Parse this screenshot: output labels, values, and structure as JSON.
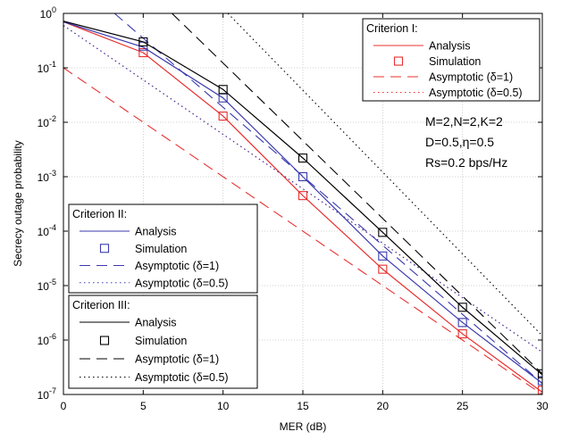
{
  "chart_data": {
    "type": "line",
    "xlabel": "MER (dB)",
    "ylabel": "Secrecy outage probability",
    "xlim": [
      0,
      30
    ],
    "ylim": [
      1e-07,
      1
    ],
    "yscale": "log",
    "grid": true,
    "x_ticks": [
      "0",
      "5",
      "10",
      "15",
      "20",
      "25",
      "30"
    ],
    "y_ticks": [
      {
        "base": "10",
        "exp": "0"
      },
      {
        "base": "10",
        "exp": "-1"
      },
      {
        "base": "10",
        "exp": "-2"
      },
      {
        "base": "10",
        "exp": "-3"
      },
      {
        "base": "10",
        "exp": "-4"
      },
      {
        "base": "10",
        "exp": "-5"
      },
      {
        "base": "10",
        "exp": "-6"
      },
      {
        "base": "10",
        "exp": "-7"
      }
    ],
    "annotation": [
      "M=2,N=2,K=2",
      "D=0.5,η=0.5",
      "Rs=0.2 bps/Hz"
    ],
    "series": [
      {
        "name": "Analysis",
        "group": "Criterion I",
        "color": "#e8302f",
        "style": "solid",
        "x": [
          0,
          5,
          10,
          15,
          20,
          25,
          30
        ],
        "y": [
          0.7,
          0.19,
          0.013,
          0.00045,
          2e-05,
          1.3e-06,
          1.1e-07
        ]
      },
      {
        "name": "Simulation",
        "group": "Criterion I",
        "color": "#e8302f",
        "style": "marker",
        "x": [
          5,
          10,
          15,
          20,
          25,
          30
        ],
        "y": [
          0.19,
          0.013,
          0.00045,
          2e-05,
          1.3e-06,
          1.2e-07
        ]
      },
      {
        "name": "Asymptotic (δ=1)",
        "group": "Criterion I",
        "color": "#e8302f",
        "style": "dashed",
        "x": [
          0,
          30
        ],
        "y": [
          0.1,
          1e-07
        ]
      },
      {
        "name": "Asymptotic (δ=0.5)",
        "group": "Criterion I",
        "color": "#e8302f",
        "style": "dotted",
        "x": [
          0,
          30
        ],
        "y": [
          0.6,
          6e-07
        ]
      },
      {
        "name": "Analysis",
        "group": "Criterion II",
        "color": "#3a3aae",
        "style": "solid",
        "x": [
          0,
          5,
          10,
          15,
          20,
          25,
          30
        ],
        "y": [
          0.7,
          0.24,
          0.028,
          0.001,
          3.5e-05,
          2.1e-06,
          1.6e-07
        ]
      },
      {
        "name": "Simulation",
        "group": "Criterion II",
        "color": "#3a3aae",
        "style": "marker",
        "x": [
          5,
          10,
          15,
          20,
          25,
          30
        ],
        "y": [
          0.25,
          0.028,
          0.001,
          3.5e-05,
          2.1e-06,
          1.8e-07
        ]
      },
      {
        "name": "Asymptotic (δ=1)",
        "group": "Criterion II",
        "color": "#3a3aae",
        "style": "dashed",
        "x": [
          3.2,
          30
        ],
        "y": [
          1,
          1.6e-07
        ]
      },
      {
        "name": "Asymptotic (δ=0.5)",
        "group": "Criterion II",
        "color": "#3a3aae",
        "style": "dotted",
        "x": [
          0,
          30
        ],
        "y": [
          0.6,
          6e-07
        ]
      },
      {
        "name": "Analysis",
        "group": "Criterion III",
        "color": "#000000",
        "style": "solid",
        "x": [
          0,
          5,
          10,
          15,
          20,
          25,
          30
        ],
        "y": [
          0.72,
          0.3,
          0.04,
          0.0022,
          9.5e-05,
          4e-06,
          2.3e-07
        ]
      },
      {
        "name": "Simulation",
        "group": "Criterion III",
        "color": "#000000",
        "style": "marker",
        "x": [
          5,
          10,
          15,
          20,
          25,
          30
        ],
        "y": [
          0.3,
          0.04,
          0.0022,
          9.5e-05,
          4e-06,
          2.4e-07
        ]
      },
      {
        "name": "Asymptotic (δ=1)",
        "group": "Criterion III",
        "color": "#000000",
        "style": "dashed",
        "x": [
          6.8,
          30
        ],
        "y": [
          1,
          2.4e-07
        ]
      },
      {
        "name": "Asymptotic (δ=0.5)",
        "group": "Criterion III",
        "color": "#000000",
        "style": "dotted",
        "x": [
          10.3,
          30
        ],
        "y": [
          1,
          1.2e-06
        ]
      }
    ],
    "legends": [
      {
        "title": "Criterion I:",
        "color": "#e8302f",
        "placement": "top-right",
        "entries": [
          "Analysis",
          "Simulation",
          "Asymptotic (δ=1)",
          "Asymptotic (δ=0.5)"
        ]
      },
      {
        "title": "Criterion II:",
        "color": "#3a3aae",
        "placement": "middle-left",
        "entries": [
          "Analysis",
          "Simulation",
          "Asymptotic (δ=1)",
          "Asymptotic (δ=0.5)"
        ]
      },
      {
        "title": "Criterion III:",
        "color": "#000000",
        "placement": "bottom-left",
        "entries": [
          "Analysis",
          "Simulation",
          "Asymptotic (δ=1)",
          "Asymptotic (δ=0.5)"
        ]
      }
    ]
  }
}
